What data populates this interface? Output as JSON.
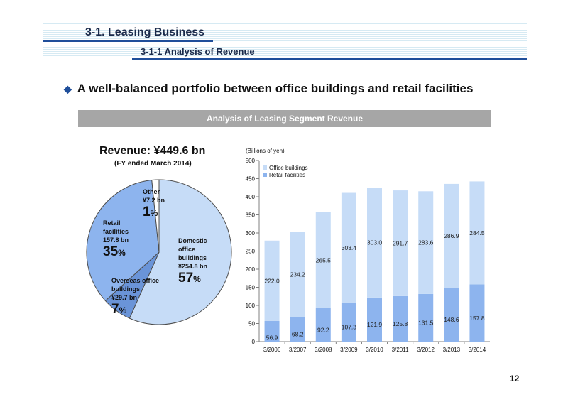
{
  "header": {
    "title": "3-1. Leasing Business",
    "subtitle": "3-1-1   Analysis of Revenue"
  },
  "headline": "A well-balanced portfolio between office buildings and retail facilities",
  "banner": "Analysis of Leasing Segment Revenue",
  "page_number": "12",
  "colors": {
    "accent": "#1f4e9a",
    "office": "#c6dcf7",
    "retail": "#8db4ee",
    "overseas": "#6a94d8",
    "other": "#ffffff",
    "banner": "#a6a6a6"
  },
  "chart_data": [
    {
      "type": "pie",
      "title": "Revenue: ¥449.6 bn",
      "subtitle": "(FY ended March 2014)",
      "slices": [
        {
          "label_lines": [
            "Domestic",
            "office",
            "buildings",
            "¥254.8 bn"
          ],
          "value": 254.8,
          "percent": "57"
        },
        {
          "label_lines": [
            "Overseas office",
            "buildings",
            "¥29.7 bn"
          ],
          "value": 29.7,
          "percent": "7"
        },
        {
          "label_lines": [
            "Retail",
            "facilities",
            "157.8 bn"
          ],
          "value": 157.8,
          "percent": "35"
        },
        {
          "label_lines": [
            "Other",
            "¥7.2 bn"
          ],
          "value": 7.2,
          "percent": "1"
        }
      ],
      "percent_sign": "%"
    },
    {
      "type": "bar",
      "stacked": true,
      "unit_label": "(Billions of yen)",
      "categories": [
        "3/2006",
        "3/2007",
        "3/2008",
        "3/2009",
        "3/2010",
        "3/2011",
        "3/2012",
        "3/2013",
        "3/2014"
      ],
      "series": [
        {
          "name": "Retail facilities",
          "values": [
            56.9,
            68.2,
            92.2,
            107.3,
            121.9,
            125.8,
            131.5,
            148.6,
            157.8
          ]
        },
        {
          "name": "Office buildings",
          "values": [
            222.0,
            234.2,
            265.5,
            303.4,
            303.0,
            291.7,
            283.6,
            286.9,
            284.5
          ]
        }
      ],
      "legend": [
        "Office buildings",
        "Retail facilities"
      ],
      "legend_position": "top-left",
      "ylim": [
        0,
        500
      ],
      "yticks": [
        0,
        50,
        100,
        150,
        200,
        250,
        300,
        350,
        400,
        450,
        500
      ],
      "grid": false
    }
  ]
}
